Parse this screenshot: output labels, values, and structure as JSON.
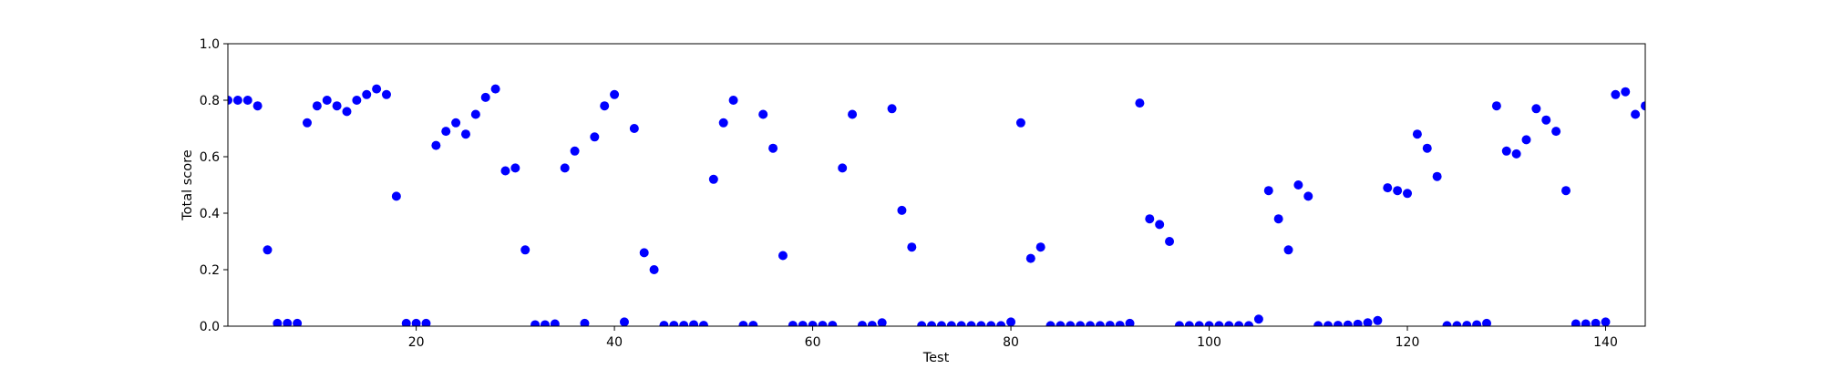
{
  "chart_data": {
    "type": "scatter",
    "title": "",
    "xlabel": "Test",
    "ylabel": "Total score",
    "xlim": [
      1,
      144
    ],
    "ylim": [
      0.0,
      1.0
    ],
    "x_ticks": [
      20,
      40,
      60,
      80,
      100,
      120,
      140
    ],
    "x_tick_labels": [
      "20",
      "40",
      "60",
      "80",
      "100",
      "120",
      "140"
    ],
    "y_ticks": [
      0.0,
      0.2,
      0.4,
      0.6,
      0.8,
      1.0
    ],
    "y_tick_labels": [
      "0.0",
      "0.2",
      "0.4",
      "0.6",
      "0.8",
      "1.0"
    ],
    "grid": false,
    "marker_color": "#0000ff",
    "x": [
      1,
      2,
      3,
      4,
      5,
      6,
      7,
      8,
      9,
      10,
      11,
      12,
      13,
      14,
      15,
      16,
      17,
      18,
      19,
      20,
      21,
      22,
      23,
      24,
      25,
      26,
      27,
      28,
      29,
      30,
      31,
      32,
      33,
      34,
      35,
      36,
      37,
      38,
      39,
      40,
      41,
      42,
      43,
      44,
      45,
      46,
      47,
      48,
      49,
      50,
      51,
      52,
      53,
      54,
      55,
      56,
      57,
      58,
      59,
      60,
      61,
      62,
      63,
      64,
      65,
      66,
      67,
      68,
      69,
      70,
      71,
      72,
      73,
      74,
      75,
      76,
      77,
      78,
      79,
      80,
      81,
      82,
      83,
      84,
      85,
      86,
      87,
      88,
      89,
      90,
      91,
      92,
      93,
      94,
      95,
      96,
      97,
      98,
      99,
      100,
      101,
      102,
      103,
      104,
      105,
      106,
      107,
      108,
      109,
      110,
      111,
      112,
      113,
      114,
      115,
      116,
      117,
      118,
      119,
      120,
      121,
      122,
      123,
      124,
      125,
      126,
      127,
      128,
      129,
      130,
      131,
      132,
      133,
      134,
      135,
      136,
      137,
      138,
      139,
      140,
      141,
      142,
      143,
      144
    ],
    "y": [
      0.8,
      0.8,
      0.8,
      0.78,
      0.27,
      0.01,
      0.01,
      0.01,
      0.72,
      0.78,
      0.8,
      0.78,
      0.76,
      0.8,
      0.82,
      0.84,
      0.82,
      0.46,
      0.01,
      0.01,
      0.01,
      0.64,
      0.69,
      0.72,
      0.68,
      0.75,
      0.81,
      0.84,
      0.55,
      0.56,
      0.27,
      0.005,
      0.005,
      0.008,
      0.56,
      0.62,
      0.01,
      0.67,
      0.78,
      0.82,
      0.015,
      0.7,
      0.26,
      0.2,
      0.003,
      0.003,
      0.003,
      0.005,
      0.003,
      0.52,
      0.72,
      0.8,
      0.003,
      0.003,
      0.75,
      0.63,
      0.25,
      0.003,
      0.003,
      0.003,
      0.003,
      0.003,
      0.56,
      0.75,
      0.003,
      0.003,
      0.012,
      0.77,
      0.41,
      0.28,
      0.002,
      0.002,
      0.002,
      0.002,
      0.002,
      0.002,
      0.002,
      0.002,
      0.002,
      0.015,
      0.72,
      0.24,
      0.28,
      0.002,
      0.002,
      0.002,
      0.002,
      0.002,
      0.002,
      0.003,
      0.003,
      0.01,
      0.79,
      0.38,
      0.36,
      0.3,
      0.002,
      0.002,
      0.002,
      0.002,
      0.002,
      0.002,
      0.002,
      0.002,
      0.025,
      0.48,
      0.38,
      0.27,
      0.5,
      0.46,
      0.002,
      0.002,
      0.003,
      0.004,
      0.007,
      0.012,
      0.02,
      0.49,
      0.48,
      0.47,
      0.68,
      0.63,
      0.53,
      0.002,
      0.002,
      0.003,
      0.005,
      0.01,
      0.78,
      0.62,
      0.61,
      0.66,
      0.77,
      0.73,
      0.69,
      0.48,
      0.008,
      0.008,
      0.01,
      0.015,
      0.82,
      0.83,
      0.75,
      0.78
    ]
  }
}
